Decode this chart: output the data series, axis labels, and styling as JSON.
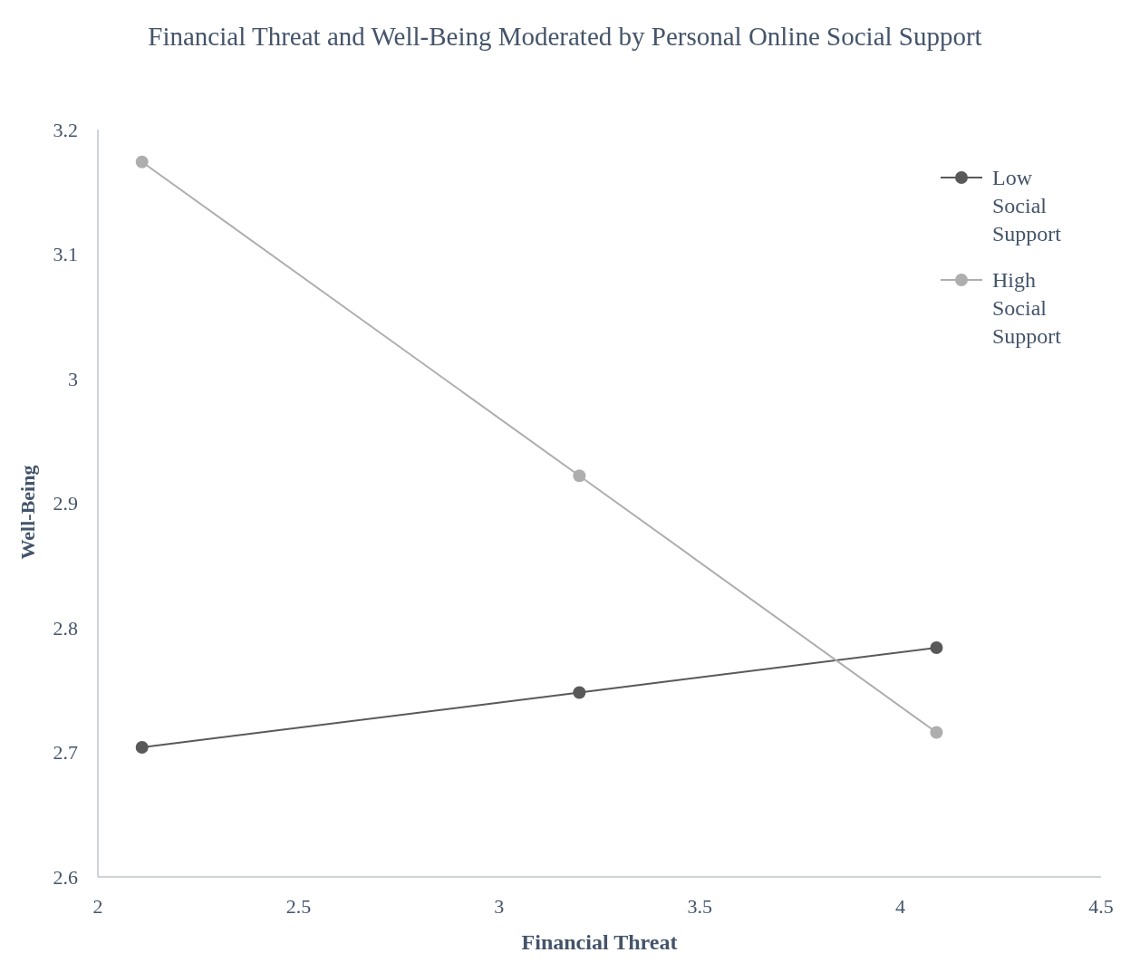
{
  "chart_data": {
    "type": "line",
    "title": "Financial Threat and Well-Being Moderated by Personal Online Social Support",
    "xlabel": "Financial Threat",
    "ylabel": "Well-Being",
    "x": [
      2.11,
      3.2,
      4.09
    ],
    "series": [
      {
        "name": "Low Social Support",
        "color": "#595959",
        "values": [
          2.704,
          2.748,
          2.784
        ]
      },
      {
        "name": "High Social Support",
        "color": "#aeaeae",
        "values": [
          3.174,
          2.922,
          2.716
        ]
      }
    ],
    "xlim": [
      2,
      4.5
    ],
    "xticks": [
      2,
      2.5,
      3,
      3.5,
      4,
      4.5
    ],
    "ylim": [
      2.6,
      3.2
    ],
    "yticks": [
      2.6,
      2.7,
      2.8,
      2.9,
      3,
      3.1,
      3.2
    ],
    "grid": false,
    "legend": "top right",
    "marker": "circle",
    "line_style": "solid"
  }
}
